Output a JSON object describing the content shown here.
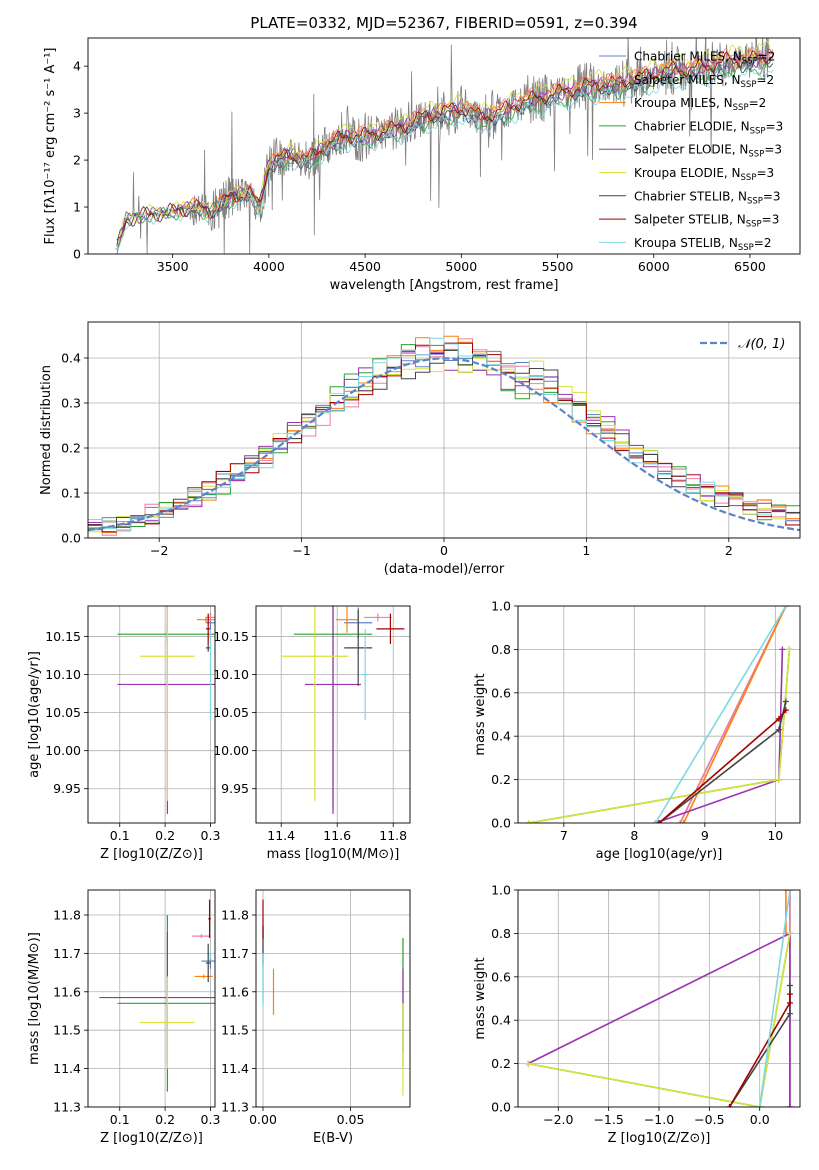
{
  "figure": {
    "title": "PLATE=0332, MJD=52367, FIBERID=0591, z=0.394"
  },
  "models": [
    {
      "label": "Chabrier MILES, N",
      "sub": "SSP",
      "suffix": "=2",
      "color": "#5b84c9"
    },
    {
      "label": "Salpeter MILES, N",
      "sub": "SSP",
      "suffix": "=2",
      "color": "#f07fa0"
    },
    {
      "label": "Kroupa MILES, N",
      "sub": "SSP",
      "suffix": "=2",
      "color": "#ff7f0e"
    },
    {
      "label": "Chabrier ELODIE, N",
      "sub": "SSP",
      "suffix": "=3",
      "color": "#2ca02c"
    },
    {
      "label": "Salpeter ELODIE, N",
      "sub": "SSP",
      "suffix": "=3",
      "color": "#9b30b0"
    },
    {
      "label": "Kroupa ELODIE, N",
      "sub": "SSP",
      "suffix": "=3",
      "color": "#d8e23a"
    },
    {
      "label": "Chabrier STELIB, N",
      "sub": "SSP",
      "suffix": "=3",
      "color": "#444444"
    },
    {
      "label": "Salpeter STELIB, N",
      "sub": "SSP",
      "suffix": "=3",
      "color": "#a00000"
    },
    {
      "label": "Kroupa STELIB, N",
      "sub": "SSP",
      "suffix": "=2",
      "color": "#7fd8e0"
    }
  ],
  "chart_data": [
    {
      "id": "spectrum",
      "type": "line",
      "xlabel": "wavelength [Angstrom, rest frame]",
      "ylabel": "Flux [fλ10⁻¹⁷ erg cm⁻² s⁻¹ A⁻¹]",
      "xlim": [
        3060,
        6760
      ],
      "ylim": [
        0,
        4.6
      ],
      "xticks": [
        3500,
        4000,
        4500,
        5000,
        5500,
        6000,
        6500
      ],
      "yticks": [
        0,
        1,
        2,
        3,
        4
      ],
      "data_color": "#808080",
      "anchors_x": [
        3200,
        3260,
        3380,
        3500,
        3600,
        3700,
        3800,
        3900,
        3950,
        4000,
        4100,
        4200,
        4300,
        4400,
        4500,
        4600,
        4700,
        4800,
        4900,
        5000,
        5100,
        5200,
        5300,
        5400,
        5500,
        5600,
        5700,
        5800,
        5900,
        6000,
        6100,
        6200,
        6300,
        6400,
        6500,
        6600
      ],
      "anchors_y": [
        0.0,
        0.75,
        0.85,
        0.9,
        1.0,
        0.9,
        1.2,
        1.3,
        1.0,
        1.9,
        2.1,
        2.0,
        2.3,
        2.5,
        2.5,
        2.6,
        2.7,
        2.9,
        3.0,
        3.1,
        2.9,
        3.0,
        3.2,
        3.3,
        3.4,
        3.5,
        3.6,
        3.6,
        3.7,
        3.8,
        3.9,
        3.9,
        4.0,
        4.1,
        4.1,
        4.2
      ],
      "model_scale": [
        1.0,
        1.03,
        1.02,
        0.96,
        1.0,
        1.05,
        0.98,
        1.01,
        0.93
      ]
    },
    {
      "id": "residuals",
      "type": "line",
      "xlabel": "(data-model)/error",
      "ylabel": "Normed distribution",
      "xlim": [
        -2.5,
        2.5
      ],
      "ylim": [
        0,
        0.48
      ],
      "xticks": [
        -2,
        -1,
        0,
        1,
        2
      ],
      "yticks": [
        0.0,
        0.1,
        0.2,
        0.3,
        0.4
      ],
      "legend": "𝒩(0, 1)",
      "gauss_color": "#5b84c9",
      "bin_width": 0.1
    },
    {
      "id": "age-vs-Z",
      "type": "scatter",
      "xlabel": "Z [log10(Z/Z⊙)]",
      "ylabel": "age  [log10(age/yr)]",
      "xlim": [
        0.03,
        0.31
      ],
      "ylim": [
        9.905,
        10.19
      ],
      "xticks": [
        0.1,
        0.2,
        0.3
      ],
      "yticks": [
        9.95,
        10.0,
        10.05,
        10.1,
        10.15
      ],
      "points": [
        {
          "x": 0.3,
          "y": 10.168,
          "xerr": 0.01,
          "yerr": 0.013
        },
        {
          "x": 0.3,
          "y": 10.175,
          "xerr": 0.01,
          "yerr": 0.005
        },
        {
          "x": 0.29,
          "y": 10.172,
          "xerr": 0.02,
          "yerr": 0.004
        },
        {
          "x": 0.205,
          "y": 10.153,
          "xerr": 0.11,
          "yerr": 0.012
        },
        {
          "x": 0.205,
          "y": 10.087,
          "xerr": 0.11,
          "yerr": 0.17
        },
        {
          "x": 0.205,
          "y": 10.124,
          "xerr": 0.06,
          "yerr": 0.19
        },
        {
          "x": 0.295,
          "y": 10.135,
          "xerr": 0.005,
          "yerr": 0.005
        },
        {
          "x": 0.295,
          "y": 10.16,
          "xerr": 0.005,
          "yerr": 0.02
        },
        {
          "x": 0.3,
          "y": 10.1,
          "xerr": 0.003,
          "yerr": 0.06
        }
      ]
    },
    {
      "id": "age-vs-mass",
      "type": "scatter",
      "xlabel": "mass [log10(M/M⊙)]",
      "ylabel": "",
      "xlim": [
        11.31,
        11.86
      ],
      "ylim": [
        9.905,
        10.19
      ],
      "xticks": [
        11.4,
        11.6,
        11.8
      ],
      "yticks": [
        9.95,
        10.0,
        10.05,
        10.1,
        10.15
      ],
      "points": [
        {
          "x": 11.675,
          "y": 10.168,
          "xerr": 0.05,
          "yerr": 0.02
        },
        {
          "x": 11.745,
          "y": 10.175,
          "xerr": 0.05,
          "yerr": 0.005
        },
        {
          "x": 11.635,
          "y": 10.172,
          "xerr": 0.04,
          "yerr": 0.017
        },
        {
          "x": 11.585,
          "y": 10.153,
          "xerr": 0.14,
          "yerr": 0.23
        },
        {
          "x": 11.585,
          "y": 10.087,
          "xerr": 0.1,
          "yerr": 0.17
        },
        {
          "x": 11.52,
          "y": 10.124,
          "xerr": 0.12,
          "yerr": 0.19
        },
        {
          "x": 11.675,
          "y": 10.135,
          "xerr": 0.05,
          "yerr": 0.05
        },
        {
          "x": 11.79,
          "y": 10.16,
          "xerr": 0.05,
          "yerr": 0.02
        },
        {
          "x": 11.7,
          "y": 10.1,
          "xerr": 0.01,
          "yerr": 0.06
        }
      ]
    },
    {
      "id": "weight-vs-age",
      "type": "line",
      "xlabel": "age  [log10(age/yr)]",
      "ylabel": "mass weight",
      "xlim": [
        6.35,
        10.35
      ],
      "ylim": [
        0,
        1.0
      ],
      "xticks": [
        7,
        8,
        9,
        10
      ],
      "yticks": [
        0.0,
        0.2,
        0.4,
        0.6,
        0.8,
        1.0
      ],
      "series": [
        {
          "x": [
            8.65,
            10.15
          ],
          "y": [
            0.0,
            1.0
          ]
        },
        {
          "x": [
            8.65,
            10.15
          ],
          "y": [
            0.0,
            1.0
          ]
        },
        {
          "x": [
            8.7,
            10.15
          ],
          "y": [
            0.0,
            1.0
          ]
        },
        {
          "x": [
            6.5,
            10.05,
            10.2
          ],
          "y": [
            0.0,
            0.2,
            0.8
          ]
        },
        {
          "x": [
            8.3,
            10.05,
            10.1
          ],
          "y": [
            0.0,
            0.2,
            0.8
          ]
        },
        {
          "x": [
            6.5,
            10.05,
            10.2
          ],
          "y": [
            0.0,
            0.2,
            0.8
          ]
        },
        {
          "x": [
            8.35,
            10.05,
            10.15
          ],
          "y": [
            0.0,
            0.43,
            0.56
          ]
        },
        {
          "x": [
            8.35,
            10.05,
            10.15
          ],
          "y": [
            0.0,
            0.48,
            0.52
          ]
        },
        {
          "x": [
            8.3,
            10.15
          ],
          "y": [
            0.0,
            1.0
          ]
        }
      ]
    },
    {
      "id": "mass-vs-Z",
      "type": "scatter",
      "xlabel": "Z [log10(Z/Z⊙)]",
      "ylabel": "mass [log10(M/M⊙)]",
      "xlim": [
        0.03,
        0.31
      ],
      "ylim": [
        11.3,
        11.865
      ],
      "xticks": [
        0.1,
        0.2,
        0.3
      ],
      "yticks": [
        11.3,
        11.4,
        11.5,
        11.6,
        11.7,
        11.8
      ],
      "points": [
        {
          "x": 0.3,
          "y": 11.68,
          "xerr": 0.02,
          "yerr": 0.02
        },
        {
          "x": 0.28,
          "y": 11.745,
          "xerr": 0.02,
          "yerr": 0.005
        },
        {
          "x": 0.285,
          "y": 11.64,
          "xerr": 0.02,
          "yerr": 0.005
        },
        {
          "x": 0.205,
          "y": 11.57,
          "xerr": 0.11,
          "yerr": 0.23
        },
        {
          "x": 0.205,
          "y": 11.585,
          "xerr": 0.15,
          "yerr": 0.17
        },
        {
          "x": 0.205,
          "y": 11.52,
          "xerr": 0.06,
          "yerr": 0.12
        },
        {
          "x": 0.295,
          "y": 11.675,
          "xerr": 0.005,
          "yerr": 0.05
        },
        {
          "x": 0.298,
          "y": 11.79,
          "xerr": 0.003,
          "yerr": 0.05
        },
        {
          "x": 0.3,
          "y": 11.695,
          "xerr": 0.002,
          "yerr": 0.01
        }
      ]
    },
    {
      "id": "mass-vs-EBV",
      "type": "scatter",
      "xlabel": "E(B-V)",
      "ylabel": "",
      "xlim": [
        -0.004,
        0.084
      ],
      "ylim": [
        11.3,
        11.865
      ],
      "xticks": [
        0.0,
        0.05
      ],
      "tick_labels": [
        "0.00",
        "0.05"
      ],
      "yticks": [
        11.3,
        11.4,
        11.5,
        11.6,
        11.7,
        11.8
      ],
      "points": [
        {
          "x": 0.0,
          "y": 11.675,
          "xerr": 0,
          "yerr": 0.1
        },
        {
          "x": 0.0,
          "y": 11.745,
          "xerr": 0,
          "yerr": 0.01
        },
        {
          "x": 0.006,
          "y": 11.6,
          "xerr": 0,
          "yerr": 0.06
        },
        {
          "x": 0.08,
          "y": 11.57,
          "xerr": 0,
          "yerr": 0.17
        },
        {
          "x": 0.08,
          "y": 11.55,
          "xerr": 0,
          "yerr": 0.11
        },
        {
          "x": 0.08,
          "y": 11.45,
          "xerr": 0,
          "yerr": 0.12
        },
        {
          "x": 0.0,
          "y": 11.72,
          "xerr": 0,
          "yerr": 0.05
        },
        {
          "x": 0.0,
          "y": 11.79,
          "xerr": 0,
          "yerr": 0.05
        },
        {
          "x": 0.0,
          "y": 11.63,
          "xerr": 0,
          "yerr": 0.07
        }
      ]
    },
    {
      "id": "weight-vs-Z",
      "type": "line",
      "xlabel": "Z [log10(Z/Z⊙)]",
      "ylabel": "mass weight",
      "xlim": [
        -2.4,
        0.4
      ],
      "ylim": [
        0,
        1.0
      ],
      "xticks": [
        -2.0,
        -1.5,
        -1.0,
        -0.5,
        0.0
      ],
      "tick_labels": [
        "−2.0",
        "−1.5",
        "−1.0",
        "−0.5",
        "0.0"
      ],
      "yticks": [
        0.0,
        0.2,
        0.4,
        0.6,
        0.8,
        1.0
      ],
      "series": [
        {
          "x": [
            0.3,
            0.3
          ],
          "y": [
            0.0,
            1.0
          ]
        },
        {
          "x": [
            0.3,
            0.3
          ],
          "y": [
            0.0,
            1.0
          ]
        },
        {
          "x": [
            0.26,
            0.26
          ],
          "y": [
            0.8,
            1.0
          ]
        },
        {
          "x": [
            -2.3,
            0.0,
            0.3
          ],
          "y": [
            0.2,
            0.0,
            0.8
          ]
        },
        {
          "x": [
            -2.3,
            0.3,
            0.3
          ],
          "y": [
            0.2,
            0.8,
            0.0
          ]
        },
        {
          "x": [
            -2.3,
            0.0,
            0.3
          ],
          "y": [
            0.2,
            0.0,
            0.8
          ]
        },
        {
          "x": [
            -0.3,
            0.3,
            0.3
          ],
          "y": [
            0.0,
            0.43,
            0.56
          ]
        },
        {
          "x": [
            -0.3,
            0.3,
            0.3
          ],
          "y": [
            0.0,
            0.48,
            0.52
          ]
        },
        {
          "x": [
            0.0,
            0.3
          ],
          "y": [
            0.0,
            1.0
          ]
        }
      ]
    }
  ]
}
